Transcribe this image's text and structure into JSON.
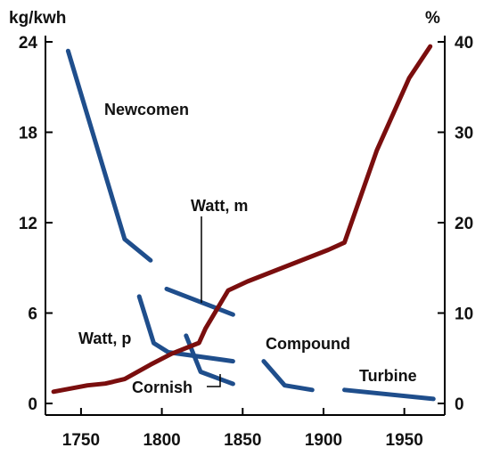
{
  "chart_data": {
    "type": "line",
    "left_unit": "kg/kwh",
    "right_unit": "%",
    "x_ticks": [
      "1750",
      "1800",
      "1850",
      "1900",
      "1950"
    ],
    "xlim": [
      1728,
      1975
    ],
    "y_left_ticks": [
      "0",
      "6",
      "12",
      "18",
      "24"
    ],
    "ylim_left": [
      0,
      24
    ],
    "y_right_ticks": [
      "0",
      "10",
      "20",
      "30",
      "40"
    ],
    "ylim_right": [
      0,
      40
    ],
    "grid": false,
    "colors": {
      "consumption": "#1f4e8c",
      "efficiency": "#7a0e0e"
    },
    "series": [
      {
        "name": "Newcomen",
        "axis": "left",
        "points": [
          [
            1742,
            23.4
          ],
          [
            1777,
            10.9
          ],
          [
            1793,
            9.5
          ]
        ]
      },
      {
        "name": "Watt, m",
        "axis": "left",
        "points": [
          [
            1803,
            7.6
          ],
          [
            1844,
            5.9
          ]
        ]
      },
      {
        "name": "Watt, p",
        "axis": "left",
        "points": [
          [
            1786,
            7.1
          ],
          [
            1795,
            4.0
          ],
          [
            1804,
            3.4
          ],
          [
            1844,
            2.8
          ]
        ]
      },
      {
        "name": "Cornish",
        "axis": "left",
        "points": [
          [
            1815,
            4.5
          ],
          [
            1824,
            2.1
          ],
          [
            1844,
            1.3
          ]
        ]
      },
      {
        "name": "Compound",
        "axis": "left",
        "points": [
          [
            1863,
            2.8
          ],
          [
            1876,
            1.2
          ],
          [
            1893,
            0.9
          ]
        ]
      },
      {
        "name": "Turbine",
        "axis": "left",
        "points": [
          [
            1913,
            0.9
          ],
          [
            1968,
            0.3
          ]
        ]
      },
      {
        "name": "",
        "axis": "right",
        "points": [
          [
            1733,
            1.3
          ],
          [
            1754,
            2.0
          ],
          [
            1765,
            2.2
          ],
          [
            1777,
            2.7
          ],
          [
            1793,
            4.3
          ],
          [
            1806,
            5.5
          ],
          [
            1823,
            6.7
          ],
          [
            1827,
            8.3
          ],
          [
            1841,
            12.5
          ],
          [
            1853,
            13.5
          ],
          [
            1903,
            17.0
          ],
          [
            1913,
            17.8
          ],
          [
            1933,
            28.0
          ],
          [
            1953,
            36.0
          ],
          [
            1966,
            39.5
          ]
        ]
      }
    ],
    "series_label_text": {
      "newcomen": "Newcomen",
      "watt_m": "Watt, m",
      "watt_p": "Watt, p",
      "cornish": "Cornish",
      "compound": "Compound",
      "turbine": "Turbine"
    }
  }
}
